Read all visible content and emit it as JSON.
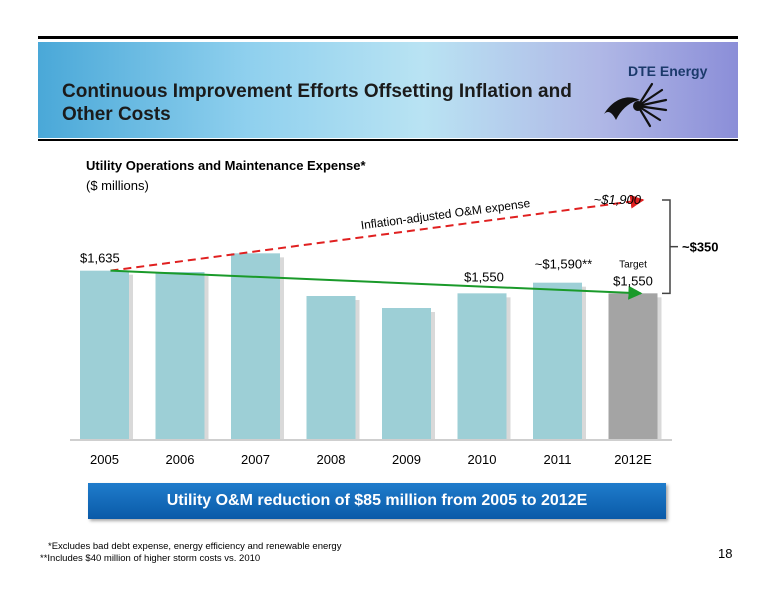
{
  "slide": {
    "title": "Continuous Improvement Efforts Offsetting Inflation and Other Costs",
    "logo_text": "DTE Energy",
    "logo_icon": "dte-sunburst-icon",
    "banner_color": "#4aa8d8",
    "callout": "Utility O&M reduction of $85 million from 2005 to 2012E",
    "footnotes": [
      "*Excludes bad debt expense, energy efficiency and renewable energy",
      "**Includes $40 million of higher storm costs vs. 2010"
    ],
    "page_number": "18"
  },
  "chart_data": {
    "type": "bar",
    "title": "Utility Operations and Maintenance Expense*",
    "subtitle": "($ millions)",
    "categories": [
      "2005",
      "2006",
      "2007",
      "2008",
      "2009",
      "2010",
      "2011",
      "2012E"
    ],
    "values": [
      1635,
      1630,
      1700,
      1540,
      1495,
      1550,
      1590,
      1550
    ],
    "bar_colors": [
      "#9dcfd6",
      "#9dcfd6",
      "#9dcfd6",
      "#9dcfd6",
      "#9dcfd6",
      "#9dcfd6",
      "#9dcfd6",
      "#a4a4a4"
    ],
    "ylim": [
      1000,
      1900
    ],
    "data_labels": [
      {
        "category": "2005",
        "text": "$1,635"
      },
      {
        "category": "2010",
        "text": "$1,550"
      },
      {
        "category": "2011",
        "text": "~$1,590**"
      },
      {
        "category": "2012E",
        "text": "$1,550"
      }
    ],
    "target_label": "Target",
    "trend_lines": [
      {
        "name": "Inflation-adjusted O&M expense",
        "from": {
          "category": "2005",
          "value": 1635
        },
        "to": {
          "category": "2012E",
          "value": 1900
        },
        "style": "dashed",
        "color": "#e02020"
      },
      {
        "name": "",
        "from": {
          "category": "2005",
          "value": 1635
        },
        "to": {
          "category": "2012E",
          "value": 1550
        },
        "style": "solid",
        "color": "#1a9a2a"
      }
    ],
    "trend_end_label": "~$1,900",
    "gap_label": "~$350",
    "grid": false
  }
}
